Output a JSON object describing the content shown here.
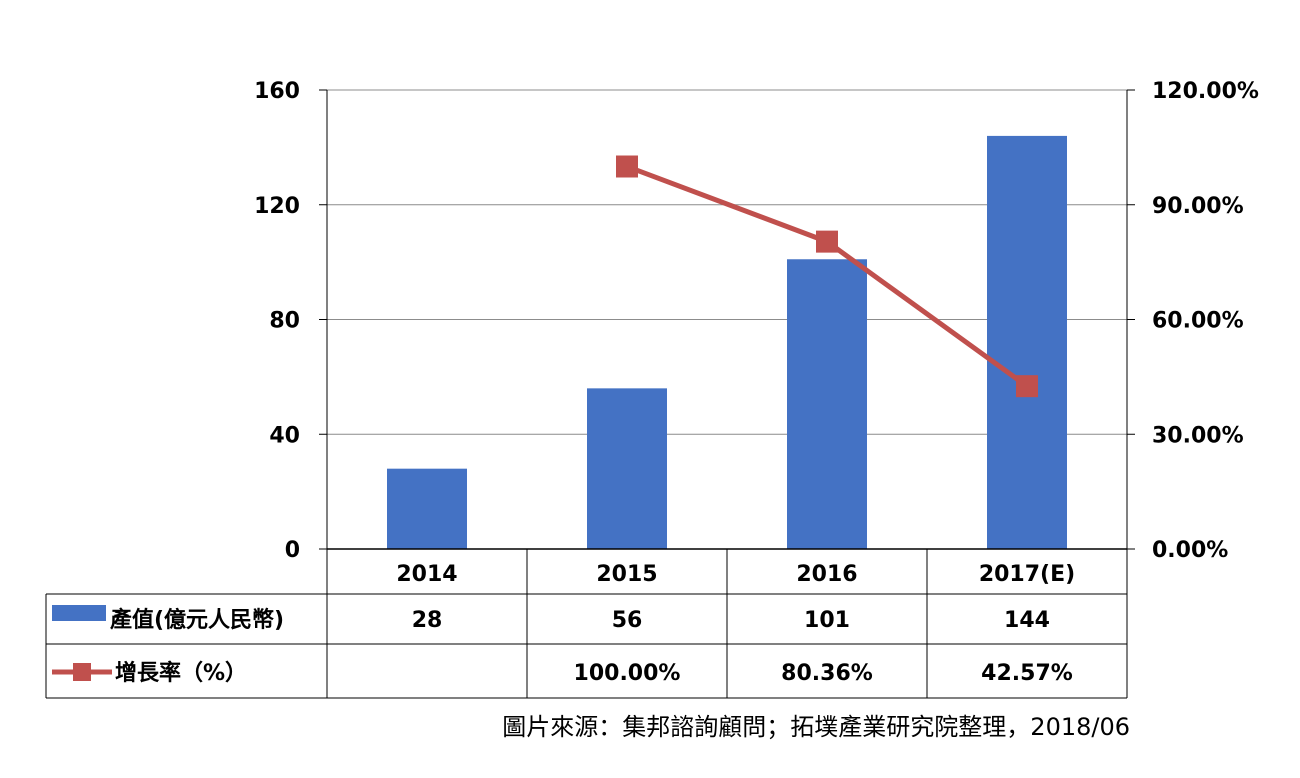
{
  "chart_data": {
    "type": "bar",
    "categories": [
      "2014",
      "2015",
      "2016",
      "2017(E)"
    ],
    "series": [
      {
        "name": "產值(億元人民幣)",
        "type": "bar",
        "axis": "left",
        "values": [
          28,
          56,
          101,
          144
        ],
        "labels": [
          "28",
          "56",
          "101",
          "144"
        ],
        "color": "#4472C4"
      },
      {
        "name": "增長率（%）",
        "type": "line",
        "axis": "right",
        "values": [
          null,
          100.0,
          80.36,
          42.57
        ],
        "labels": [
          "",
          "100.00%",
          "80.36%",
          "42.57%"
        ],
        "color": "#C0504D"
      }
    ],
    "y_left": {
      "range": [
        0,
        160
      ],
      "ticks": [
        "0",
        "40",
        "80",
        "120",
        "160"
      ]
    },
    "y_right": {
      "range": [
        0,
        120
      ],
      "ticks": [
        "0.00%",
        "30.00%",
        "60.00%",
        "90.00%",
        "120.00%"
      ]
    },
    "grid": true,
    "legend": "data-table-left"
  },
  "source": "圖片來源：集邦諮詢顧問；拓墣產業研究院整理，2018/06"
}
